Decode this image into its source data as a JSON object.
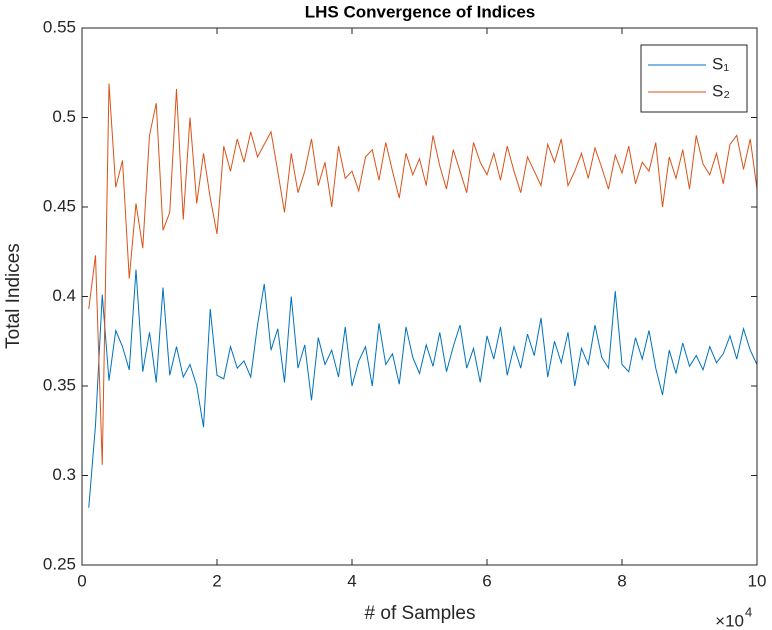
{
  "chart_data": {
    "type": "line",
    "title": "LHS Convergence of Indices",
    "xlabel": "# of Samples",
    "ylabel": "Total Indices",
    "x_multiplier": {
      "base": "×10",
      "exponent": "4"
    },
    "x": [
      1000,
      2000,
      3000,
      4000,
      5000,
      6000,
      7000,
      8000,
      9000,
      10000,
      11000,
      12000,
      13000,
      14000,
      15000,
      16000,
      17000,
      18000,
      19000,
      20000,
      21000,
      22000,
      23000,
      24000,
      25000,
      26000,
      27000,
      28000,
      29000,
      30000,
      31000,
      32000,
      33000,
      34000,
      35000,
      36000,
      37000,
      38000,
      39000,
      40000,
      41000,
      42000,
      43000,
      44000,
      45000,
      46000,
      47000,
      48000,
      49000,
      50000,
      51000,
      52000,
      53000,
      54000,
      55000,
      56000,
      57000,
      58000,
      59000,
      60000,
      61000,
      62000,
      63000,
      64000,
      65000,
      66000,
      67000,
      68000,
      69000,
      70000,
      71000,
      72000,
      73000,
      74000,
      75000,
      76000,
      77000,
      78000,
      79000,
      80000,
      81000,
      82000,
      83000,
      84000,
      85000,
      86000,
      87000,
      88000,
      89000,
      90000,
      91000,
      92000,
      93000,
      94000,
      95000,
      96000,
      97000,
      98000,
      99000,
      100000
    ],
    "series": [
      {
        "name": "S₁",
        "color": "#0072BD",
        "values": [
          0.282,
          0.328,
          0.401,
          0.353,
          0.381,
          0.372,
          0.359,
          0.415,
          0.358,
          0.38,
          0.352,
          0.405,
          0.356,
          0.372,
          0.355,
          0.362,
          0.35,
          0.327,
          0.393,
          0.356,
          0.354,
          0.372,
          0.36,
          0.364,
          0.355,
          0.384,
          0.407,
          0.37,
          0.382,
          0.352,
          0.4,
          0.36,
          0.373,
          0.342,
          0.377,
          0.362,
          0.37,
          0.355,
          0.383,
          0.35,
          0.364,
          0.372,
          0.35,
          0.385,
          0.362,
          0.368,
          0.351,
          0.383,
          0.366,
          0.357,
          0.373,
          0.361,
          0.38,
          0.358,
          0.372,
          0.384,
          0.36,
          0.371,
          0.352,
          0.378,
          0.365,
          0.383,
          0.356,
          0.372,
          0.36,
          0.379,
          0.367,
          0.388,
          0.355,
          0.375,
          0.363,
          0.38,
          0.35,
          0.371,
          0.362,
          0.384,
          0.366,
          0.36,
          0.403,
          0.362,
          0.358,
          0.377,
          0.365,
          0.381,
          0.36,
          0.345,
          0.37,
          0.357,
          0.374,
          0.361,
          0.367,
          0.359,
          0.372,
          0.363,
          0.368,
          0.378,
          0.365,
          0.382,
          0.37,
          0.362
        ]
      },
      {
        "name": "S₂",
        "color": "#D95319",
        "values": [
          0.393,
          0.423,
          0.306,
          0.519,
          0.461,
          0.476,
          0.41,
          0.452,
          0.427,
          0.49,
          0.508,
          0.437,
          0.447,
          0.516,
          0.443,
          0.5,
          0.452,
          0.48,
          0.455,
          0.435,
          0.484,
          0.47,
          0.488,
          0.475,
          0.492,
          0.478,
          0.485,
          0.492,
          0.47,
          0.447,
          0.48,
          0.458,
          0.47,
          0.488,
          0.462,
          0.475,
          0.45,
          0.484,
          0.466,
          0.47,
          0.459,
          0.478,
          0.482,
          0.465,
          0.486,
          0.47,
          0.455,
          0.48,
          0.468,
          0.477,
          0.462,
          0.49,
          0.473,
          0.46,
          0.482,
          0.47,
          0.458,
          0.486,
          0.475,
          0.468,
          0.48,
          0.465,
          0.484,
          0.47,
          0.458,
          0.478,
          0.47,
          0.462,
          0.485,
          0.475,
          0.488,
          0.462,
          0.47,
          0.48,
          0.466,
          0.483,
          0.472,
          0.46,
          0.479,
          0.469,
          0.484,
          0.463,
          0.475,
          0.47,
          0.486,
          0.45,
          0.478,
          0.466,
          0.482,
          0.46,
          0.49,
          0.474,
          0.468,
          0.48,
          0.463,
          0.485,
          0.49,
          0.471,
          0.488,
          0.46
        ]
      }
    ],
    "xlim": [
      0,
      100000
    ],
    "xticks": [
      0,
      {
        "value": 20000,
        "label": "2"
      },
      {
        "value": 40000,
        "label": "4"
      },
      {
        "value": 60000,
        "label": "6"
      },
      {
        "value": 80000,
        "label": "8"
      },
      {
        "value": 100000,
        "label": "10"
      }
    ],
    "ylim": [
      0.25,
      0.55
    ],
    "yticks": [
      0.25,
      0.3,
      0.35,
      0.4,
      0.45,
      0.5,
      0.55
    ],
    "grid": false,
    "legend": "northeast"
  }
}
